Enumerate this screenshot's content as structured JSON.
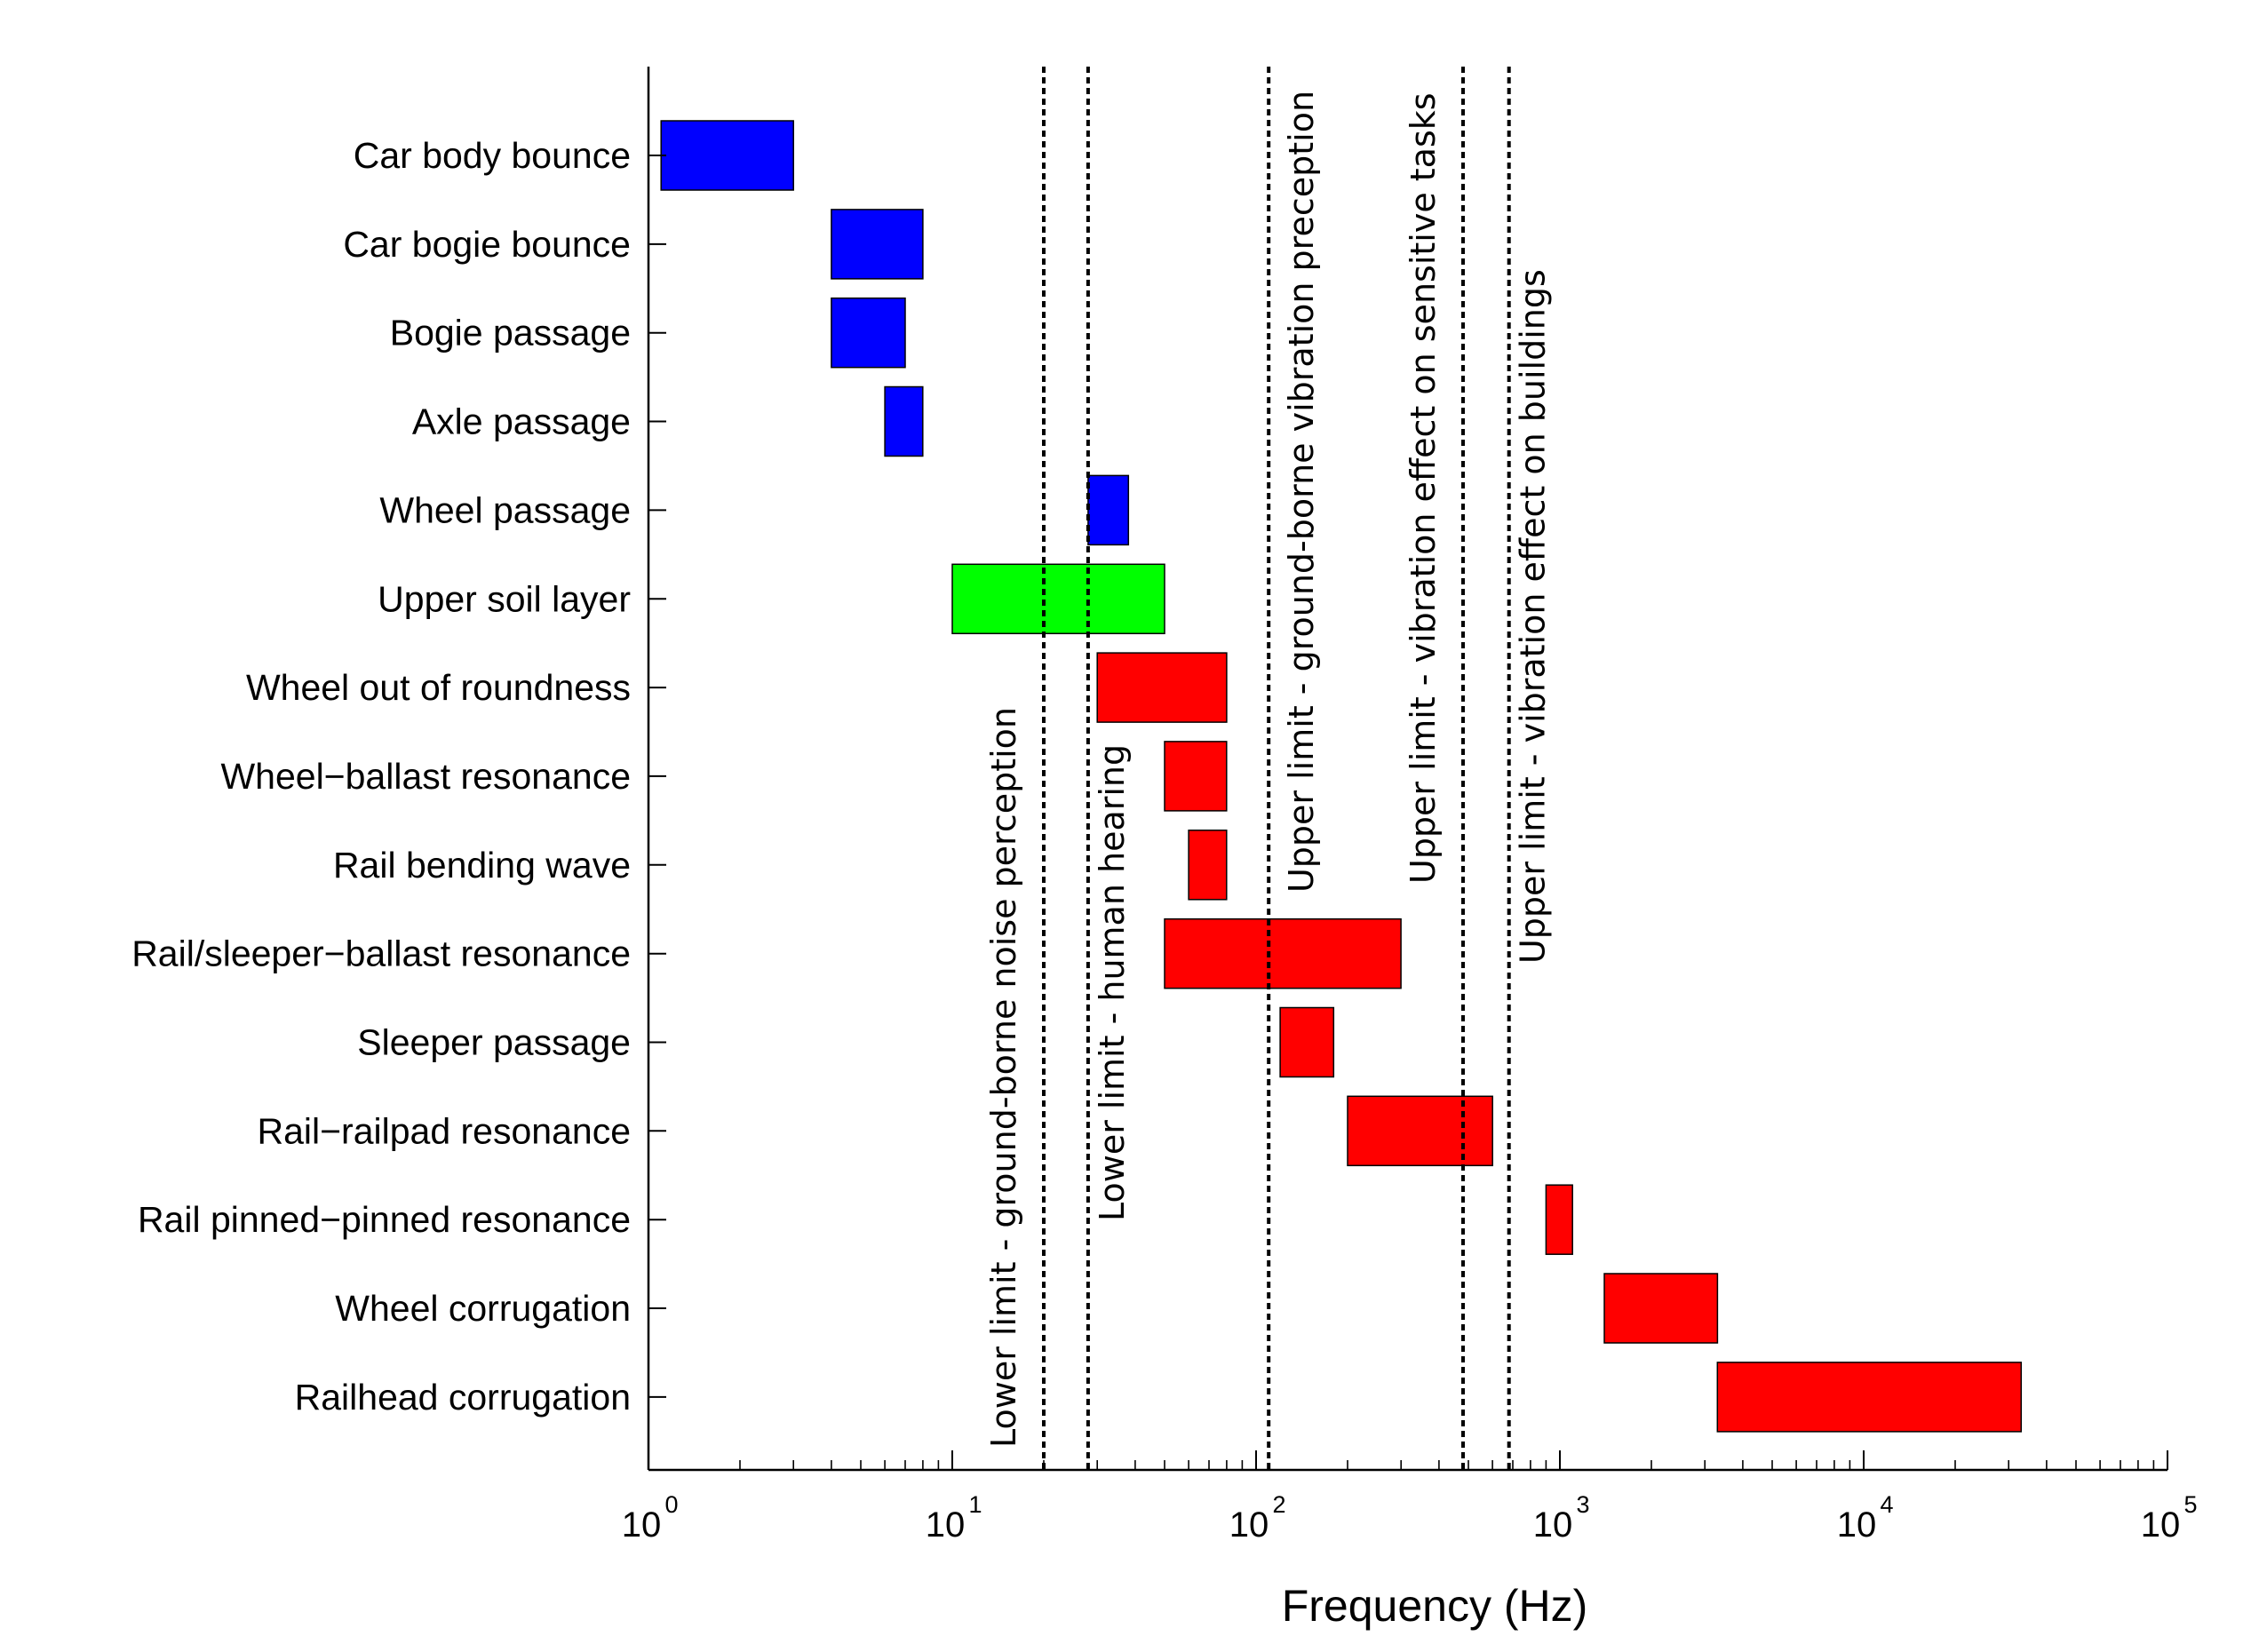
{
  "chart_data": {
    "type": "horizontal-range-bar",
    "xlabel": "Frequency (Hz)",
    "xscale": "log",
    "xlim": [
      1,
      100000
    ],
    "x_ticks": [
      {
        "value": 1,
        "base": "10",
        "exp": "0"
      },
      {
        "value": 10,
        "base": "10",
        "exp": "1"
      },
      {
        "value": 100,
        "base": "10",
        "exp": "2"
      },
      {
        "value": 1000,
        "base": "10",
        "exp": "3"
      },
      {
        "value": 10000,
        "base": "10",
        "exp": "4"
      },
      {
        "value": 100000,
        "base": "10",
        "exp": "5"
      }
    ],
    "categories": [
      {
        "label": "Car body bounce",
        "min": 1.1,
        "max": 3,
        "color": "#0000ff"
      },
      {
        "label": "Car bogie bounce",
        "min": 4,
        "max": 8,
        "color": "#0000ff"
      },
      {
        "label": "Bogie passage",
        "min": 4,
        "max": 7,
        "color": "#0000ff"
      },
      {
        "label": "Axle passage",
        "min": 6,
        "max": 8,
        "color": "#0000ff"
      },
      {
        "label": "Wheel passage",
        "min": 28,
        "max": 38,
        "color": "#0000ff"
      },
      {
        "label": "Upper soil layer",
        "min": 10,
        "max": 50,
        "color": "#00ff00"
      },
      {
        "label": "Wheel out of roundness",
        "min": 30,
        "max": 80,
        "color": "#ff0000"
      },
      {
        "label": "Wheel−ballast resonance",
        "min": 50,
        "max": 80,
        "color": "#ff0000"
      },
      {
        "label": "Rail bending wave",
        "min": 60,
        "max": 80,
        "color": "#ff0000"
      },
      {
        "label": "Rail/sleeper−ballast resonance",
        "min": 50,
        "max": 300,
        "color": "#ff0000"
      },
      {
        "label": "Sleeper passage",
        "min": 120,
        "max": 180,
        "color": "#ff0000"
      },
      {
        "label": "Rail−railpad resonance",
        "min": 200,
        "max": 600,
        "color": "#ff0000"
      },
      {
        "label": "Rail pinned−pinned resonance",
        "min": 900,
        "max": 1100,
        "color": "#ff0000"
      },
      {
        "label": "Wheel corrugation",
        "min": 1400,
        "max": 3300,
        "color": "#ff0000"
      },
      {
        "label": "Railhead corrugation",
        "min": 3300,
        "max": 33000,
        "color": "#ff0000"
      }
    ],
    "limit_lines": [
      {
        "value": 20,
        "label": "Lower limit - ground-borne noise perception"
      },
      {
        "value": 28,
        "label": "Lower limit - human hearing"
      },
      {
        "value": 110,
        "label": "Upper limit - ground-borne vibration preception"
      },
      {
        "value": 480,
        "label": "Upper limit - vibration effect on sensitive tasks"
      },
      {
        "value": 680,
        "label": "Upper limit - vibration effect on buildings"
      }
    ]
  }
}
